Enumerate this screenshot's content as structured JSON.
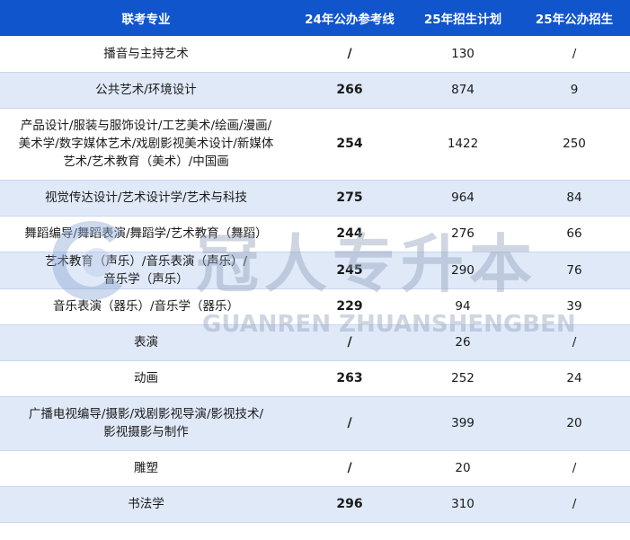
{
  "table": {
    "headers": [
      "联考专业",
      "24年公办参考线",
      "25年招生计划",
      "25年公办招生"
    ],
    "rows": [
      [
        "播音与主持艺术",
        "/",
        "130",
        "/"
      ],
      [
        "公共艺术/环境设计",
        "266",
        "874",
        "9"
      ],
      [
        "产品设计/服装与服饰设计/工艺美术/绘画/漫画/\n美术学/数字媒体艺术/戏剧影视美术设计/新媒体\n艺术/艺术教育（美术）/中国画",
        "254",
        "1422",
        "250"
      ],
      [
        "视觉传达设计/艺术设计学/艺术与科技",
        "275",
        "964",
        "84"
      ],
      [
        "舞蹈编导/舞蹈表演/舞蹈学/艺术教育（舞蹈）",
        "244",
        "276",
        "66"
      ],
      [
        "艺术教育（声乐）/音乐表演（声乐）/\n音乐学（声乐）",
        "245",
        "290",
        "76"
      ],
      [
        "音乐表演（器乐）/音乐学（器乐）",
        "229",
        "94",
        "39"
      ],
      [
        "表演",
        "/",
        "26",
        "/"
      ],
      [
        "动画",
        "263",
        "252",
        "24"
      ],
      [
        "广播电视编导/摄影/戏剧影视导演/影视技术/\n影视摄影与制作",
        "/",
        "399",
        "20"
      ],
      [
        "雕塑",
        "/",
        "20",
        "/"
      ],
      [
        "书法学",
        "296",
        "310",
        "/"
      ]
    ]
  },
  "watermark": {
    "text_cn": "冠人专升本",
    "text_en": "GUANREN ZHUANSHENGBEN"
  },
  "colors": {
    "header_bg": "#1155cc",
    "stripe_bg": "#e0e9f8",
    "watermark": "#8f9fb8"
  }
}
